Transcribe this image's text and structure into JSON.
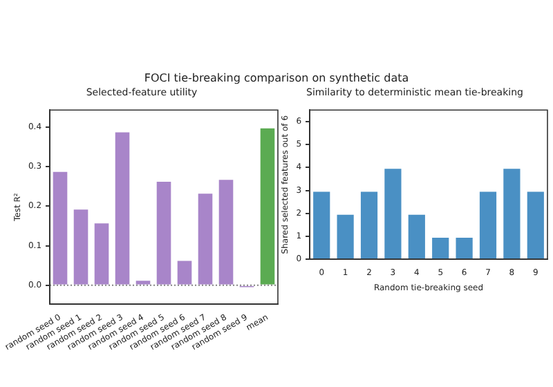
{
  "chart_data": [
    {
      "type": "bar",
      "title": "FOCI tie-breaking comparison on synthetic data",
      "subtitle": "Selected-feature utility",
      "ylabel": "Test R²",
      "categories": [
        "random seed 0",
        "random seed 1",
        "random seed 2",
        "random seed 3",
        "random seed 4",
        "random seed 5",
        "random seed 6",
        "random seed 7",
        "random seed 8",
        "random seed 9",
        "mean"
      ],
      "values": [
        0.29,
        0.195,
        0.16,
        0.39,
        0.015,
        0.265,
        0.065,
        0.235,
        0.27,
        -0.008,
        0.4
      ],
      "colors": [
        "#a885c9",
        "#a885c9",
        "#a885c9",
        "#a885c9",
        "#a885c9",
        "#a885c9",
        "#a885c9",
        "#a885c9",
        "#a885c9",
        "#a885c9",
        "#5bab52"
      ],
      "ylim": [
        -0.048,
        0.443
      ],
      "yticks": [
        {
          "value": 0,
          "label": "0.0"
        },
        0.1,
        0.2,
        0.3,
        0.4
      ],
      "ref_lines": [
        {
          "axis": "y",
          "value": 0,
          "label": null,
          "color": "#808080",
          "line_style": "dotted"
        }
      ],
      "grid": false,
      "legend": false
    },
    {
      "type": "bar",
      "title": "Similarity to deterministic mean tie-breaking",
      "xlabel": "Random tie-breaking seed",
      "ylabel": "Shared selected features out of 6",
      "categories": [
        "0",
        "1",
        "2",
        "3",
        "4",
        "5",
        "6",
        "7",
        "8",
        "9"
      ],
      "values": [
        3,
        2,
        3,
        4,
        2,
        1,
        1,
        3,
        4,
        3
      ],
      "color": "#4a90c4",
      "ylim": [
        0,
        6.5
      ],
      "yticks": [
        0,
        1,
        2,
        3,
        4,
        5,
        6
      ],
      "grid": false,
      "legend": false
    }
  ]
}
